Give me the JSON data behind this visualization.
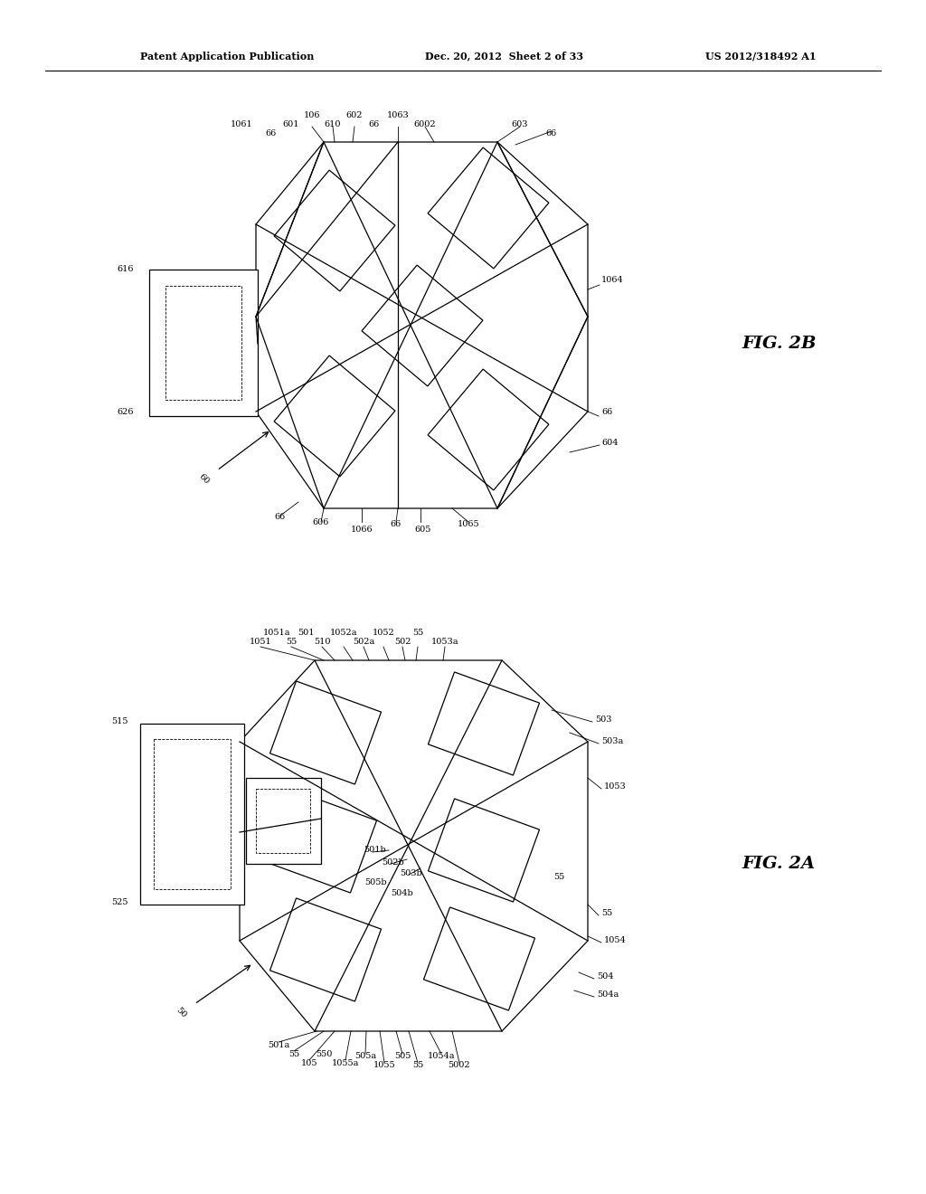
{
  "bg_color": "#ffffff",
  "line_color": "#000000",
  "header_left": "Patent Application Publication",
  "header_mid": "Dec. 20, 2012  Sheet 2 of 33",
  "header_right": "US 2012/318492 A1",
  "fig2b_label": "FIG. 2B",
  "fig2a_label": "FIG. 2A",
  "annotation_fontsize": 7.0,
  "line_width": 0.9,
  "dashed_lw": 0.6
}
